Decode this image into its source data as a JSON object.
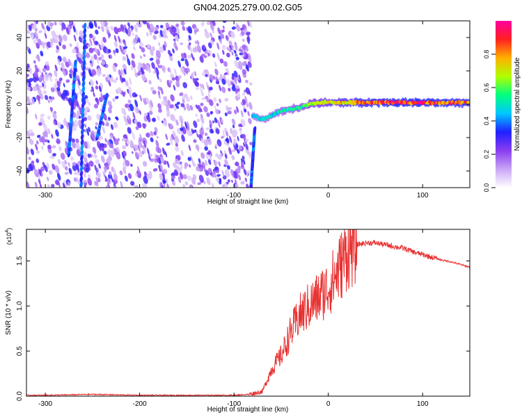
{
  "title": "GN04.2025.279.00.02.G05",
  "chart_data": [
    {
      "type": "heatmap",
      "xlabel": "Height of straight line (km)",
      "ylabel": "Frequency (Hz)",
      "xlim": [
        -320,
        150
      ],
      "ylim": [
        -50,
        50
      ],
      "x_ticks": [
        -300,
        -200,
        -100,
        0,
        100
      ],
      "y_ticks": [
        -40,
        -20,
        0,
        20,
        40
      ],
      "colorbar": {
        "label": "Normalized spectral amplitude",
        "range": [
          0,
          1
        ],
        "ticks": [
          0.0,
          0.2,
          0.4,
          0.6,
          0.8
        ],
        "colormap": [
          "#ffffff",
          "#c9a6f5",
          "#8a3cf0",
          "#2020ff",
          "#00c8ff",
          "#00ff80",
          "#b0ff00",
          "#ffb000",
          "#ff2020",
          "#ff00a0"
        ]
      },
      "noise_region_x": [
        -320,
        -82
      ],
      "signal_track": {
        "x": [
          -80,
          -70,
          -60,
          -50,
          -40,
          -30,
          -20,
          -10,
          0,
          20,
          40,
          60,
          80,
          100,
          120,
          150
        ],
        "frequency": [
          -7,
          -9,
          -7,
          -4,
          -3,
          -2,
          0,
          1,
          1,
          1,
          1,
          1,
          1,
          1,
          1,
          1
        ],
        "amplitude": [
          0.45,
          0.5,
          0.5,
          0.55,
          0.55,
          0.6,
          0.65,
          0.7,
          0.75,
          0.8,
          0.9,
          0.95,
          0.95,
          0.95,
          0.9,
          0.9
        ]
      },
      "streaks": [
        {
          "x": [
            -262,
            -258
          ],
          "freq": [
            -48,
            47
          ]
        },
        {
          "x": [
            -275,
            -268
          ],
          "freq": [
            -30,
            25
          ]
        },
        {
          "x": [
            -245,
            -235
          ],
          "freq": [
            -20,
            5
          ]
        },
        {
          "x": [
            -82,
            -78
          ],
          "freq": [
            -50,
            -15
          ]
        }
      ]
    },
    {
      "type": "line",
      "xlabel": "Height of straight line (km)",
      "ylabel": "SNR (10 * v/v)",
      "y_multiplier": "(x10",
      "y_multiplier_exp": "4",
      "xlim": [
        -320,
        150
      ],
      "ylim": [
        0,
        1.85
      ],
      "x_ticks": [
        -300,
        -200,
        -100,
        0,
        100
      ],
      "y_ticks": [
        "0.0",
        "0.5",
        "1.0",
        "1.5"
      ],
      "line_color": "#e83030",
      "series": [
        {
          "x": [
            -320,
            -300,
            -250,
            -200,
            -150,
            -100,
            -85,
            -70,
            -60,
            -50,
            -40,
            -30,
            -20,
            -10,
            0,
            10,
            20,
            30,
            40,
            50,
            60,
            70,
            80,
            90,
            100,
            110,
            120,
            130,
            140,
            150
          ],
          "y": [
            0.01,
            0.01,
            0.02,
            0.01,
            0.01,
            0.01,
            0.02,
            0.05,
            0.3,
            0.45,
            0.7,
            0.9,
            1.0,
            1.1,
            1.2,
            1.38,
            1.6,
            1.68,
            1.7,
            1.7,
            1.68,
            1.66,
            1.64,
            1.6,
            1.57,
            1.54,
            1.51,
            1.49,
            1.46,
            1.43
          ]
        }
      ]
    }
  ]
}
